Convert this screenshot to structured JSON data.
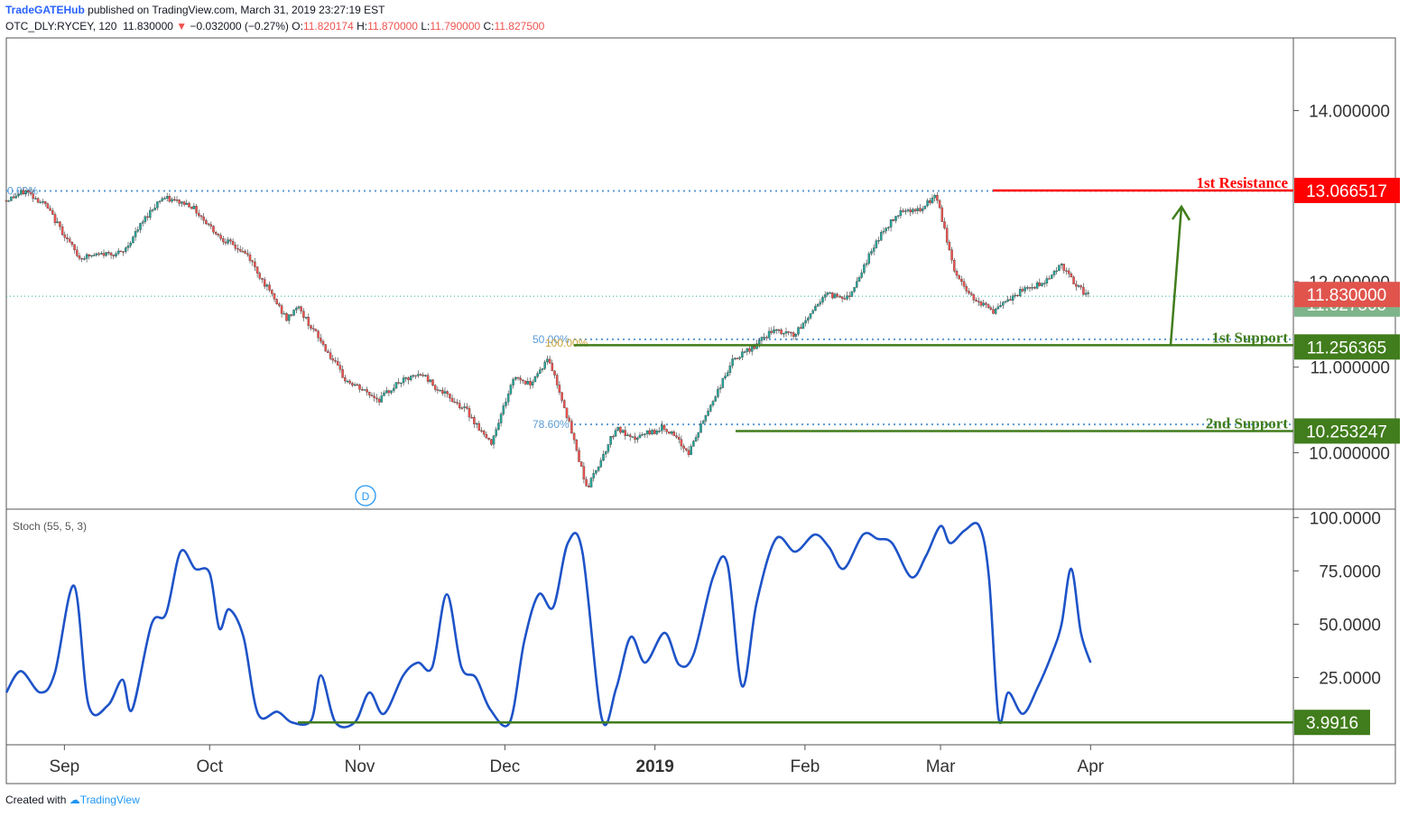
{
  "header": {
    "publisher": "TradeGATEHub",
    "published_text": "published on TradingView.com, March 31, 2019 23:27:19 EST",
    "symbol": "OTC_DLY:RYCEY, 120",
    "last": "11.830000",
    "change": "−0.032000 (−0.27%)",
    "o_label": "O:",
    "o": "11.820174",
    "h_label": "H:",
    "h": "11.870000",
    "l_label": "L:",
    "l": "11.790000",
    "c_label": "C:",
    "c": "11.827500"
  },
  "footer": {
    "created_with": "Created with",
    "brand": "TradingView"
  },
  "colors": {
    "up": "#26a69a",
    "down": "#ef5350",
    "resistance": "#ff0000",
    "support": "#417d1c",
    "stoch": "#1e53c8",
    "fib": "#5b9bd5",
    "last_price_bg": "#e0544c",
    "close_bg": "#7fb48a"
  },
  "chart_data": [
    {
      "type": "candlestick",
      "symbol": "OTC_DLY:RYCEY",
      "interval": "120",
      "ylim": [
        9.35,
        14.85
      ],
      "y_ticks": [
        "14.000000",
        "12.000000",
        "11.000000",
        "10.000000"
      ],
      "y_tick_values": [
        14,
        12,
        11,
        10
      ],
      "x_labels": [
        "Sep",
        "Oct",
        "Nov",
        "Dec",
        "2019",
        "Feb",
        "Mar",
        "Apr"
      ],
      "price_anchors": [
        [
          "2018-08-20",
          12.95
        ],
        [
          "2018-08-24",
          13.06
        ],
        [
          "2018-08-28",
          12.9
        ],
        [
          "2018-09-04",
          12.28
        ],
        [
          "2018-09-10",
          12.33
        ],
        [
          "2018-09-13",
          12.33
        ],
        [
          "2018-09-18",
          12.77
        ],
        [
          "2018-09-21",
          12.98
        ],
        [
          "2018-09-27",
          12.9
        ],
        [
          "2018-10-03",
          12.53
        ],
        [
          "2018-10-09",
          12.3
        ],
        [
          "2018-10-11",
          12.1
        ],
        [
          "2018-10-17",
          11.55
        ],
        [
          "2018-10-19",
          11.72
        ],
        [
          "2018-10-24",
          11.3
        ],
        [
          "2018-10-29",
          10.85
        ],
        [
          "2018-11-05",
          10.62
        ],
        [
          "2018-11-09",
          10.82
        ],
        [
          "2018-11-14",
          10.92
        ],
        [
          "2018-11-17",
          10.75
        ],
        [
          "2018-11-23",
          10.5
        ],
        [
          "2018-11-28",
          10.1
        ],
        [
          "2018-12-03",
          10.9
        ],
        [
          "2018-12-06",
          10.8
        ],
        [
          "2018-12-10",
          11.1
        ],
        [
          "2018-12-13",
          10.6
        ],
        [
          "2018-12-18",
          9.58
        ],
        [
          "2018-12-24",
          10.3
        ],
        [
          "2018-12-27",
          10.15
        ],
        [
          "2019-01-03",
          10.3
        ],
        [
          "2019-01-08",
          10.0
        ],
        [
          "2019-01-12",
          10.5
        ],
        [
          "2019-01-17",
          11.07
        ],
        [
          "2019-01-22",
          11.26
        ],
        [
          "2019-01-25",
          11.42
        ],
        [
          "2019-01-30",
          11.38
        ],
        [
          "2019-02-05",
          11.85
        ],
        [
          "2019-02-10",
          11.82
        ],
        [
          "2019-02-16",
          12.5
        ],
        [
          "2019-02-21",
          12.85
        ],
        [
          "2019-02-25",
          12.83
        ],
        [
          "2019-02-28",
          13.02
        ],
        [
          "2019-03-04",
          12.1
        ],
        [
          "2019-03-07",
          11.85
        ],
        [
          "2019-03-12",
          11.65
        ],
        [
          "2019-03-18",
          11.9
        ],
        [
          "2019-03-22",
          11.98
        ],
        [
          "2019-03-26",
          12.2
        ],
        [
          "2019-03-29",
          11.94
        ],
        [
          "2019-04-01",
          11.83
        ]
      ],
      "annotations": [
        {
          "label": "1st Resistance",
          "value": 13.066517,
          "price_label": "13.066517"
        },
        {
          "label": "1st Support",
          "value": 11.256365,
          "price_label": "11.256365"
        },
        {
          "label": "2nd Support",
          "value": 10.253247,
          "price_label": "10.253247"
        }
      ],
      "fibonacci": [
        {
          "label": "0.00%",
          "value": 13.06
        },
        {
          "label": "50.00%",
          "value": 11.325
        },
        {
          "label": "100.00%",
          "value": 11.28
        },
        {
          "label": "78.60%",
          "value": 10.33
        }
      ],
      "last_price": {
        "value": 11.83,
        "label": "11.830000"
      },
      "close_price": {
        "value": 11.8275,
        "label": "11.827500"
      },
      "event_marker": "D"
    },
    {
      "type": "line",
      "title": "Stoch (55, 5, 3)",
      "ylim": [
        -6.5,
        103.5
      ],
      "y_ticks": [
        "100.0000",
        "75.0000",
        "50.0000",
        "25.0000"
      ],
      "y_tick_values": [
        100,
        75,
        50,
        25
      ],
      "support_level": {
        "value": 3.9916,
        "label": "3.9916"
      },
      "series": [
        {
          "points": [
            [
              "2018-08-20",
              18
            ],
            [
              "2018-08-23",
              28
            ],
            [
              "2018-08-27",
              18
            ],
            [
              "2018-08-30",
              27
            ],
            [
              "2018-09-03",
              68
            ],
            [
              "2018-09-06",
              12
            ],
            [
              "2018-09-10",
              12
            ],
            [
              "2018-09-13",
              24
            ],
            [
              "2018-09-15",
              10
            ],
            [
              "2018-09-19",
              50
            ],
            [
              "2018-09-22",
              55
            ],
            [
              "2018-09-25",
              84
            ],
            [
              "2018-09-28",
              76
            ],
            [
              "2018-10-01",
              74
            ],
            [
              "2018-10-03",
              48
            ],
            [
              "2018-10-05",
              57
            ],
            [
              "2018-10-08",
              44
            ],
            [
              "2018-10-11",
              8
            ],
            [
              "2018-10-15",
              9
            ],
            [
              "2018-10-18",
              4
            ],
            [
              "2018-10-22",
              5
            ],
            [
              "2018-10-24",
              26
            ],
            [
              "2018-10-27",
              4
            ],
            [
              "2018-10-31",
              4
            ],
            [
              "2018-11-03",
              18
            ],
            [
              "2018-11-06",
              8
            ],
            [
              "2018-11-10",
              26
            ],
            [
              "2018-11-13",
              32
            ],
            [
              "2018-11-16",
              30
            ],
            [
              "2018-11-19",
              64
            ],
            [
              "2018-11-22",
              30
            ],
            [
              "2018-11-25",
              25
            ],
            [
              "2018-11-28",
              10
            ],
            [
              "2018-12-02",
              4
            ],
            [
              "2018-12-05",
              42
            ],
            [
              "2018-12-08",
              64
            ],
            [
              "2018-12-11",
              58
            ],
            [
              "2018-12-14",
              88
            ],
            [
              "2018-12-17",
              84
            ],
            [
              "2018-12-21",
              6
            ],
            [
              "2018-12-24",
              20
            ],
            [
              "2018-12-27",
              44
            ],
            [
              "2018-12-30",
              32
            ],
            [
              "2019-01-03",
              46
            ],
            [
              "2019-01-06",
              31
            ],
            [
              "2019-01-09",
              36
            ],
            [
              "2019-01-13",
              72
            ],
            [
              "2019-01-16",
              78
            ],
            [
              "2019-01-19",
              21
            ],
            [
              "2019-01-22",
              60
            ],
            [
              "2019-01-26",
              90
            ],
            [
              "2019-01-30",
              84
            ],
            [
              "2019-02-03",
              92
            ],
            [
              "2019-02-06",
              86
            ],
            [
              "2019-02-09",
              76
            ],
            [
              "2019-02-13",
              92
            ],
            [
              "2019-02-16",
              90
            ],
            [
              "2019-02-19",
              88
            ],
            [
              "2019-02-23",
              72
            ],
            [
              "2019-02-26",
              82
            ],
            [
              "2019-03-01",
              96
            ],
            [
              "2019-03-03",
              88
            ],
            [
              "2019-03-06",
              94
            ],
            [
              "2019-03-09",
              96
            ],
            [
              "2019-03-11",
              72
            ],
            [
              "2019-03-13",
              6
            ],
            [
              "2019-03-15",
              18
            ],
            [
              "2019-03-18",
              8
            ],
            [
              "2019-03-21",
              20
            ],
            [
              "2019-03-24",
              36
            ],
            [
              "2019-03-26",
              50
            ],
            [
              "2019-03-28",
              76
            ],
            [
              "2019-03-30",
              46
            ],
            [
              "2019-04-01",
              32
            ]
          ]
        }
      ]
    }
  ]
}
